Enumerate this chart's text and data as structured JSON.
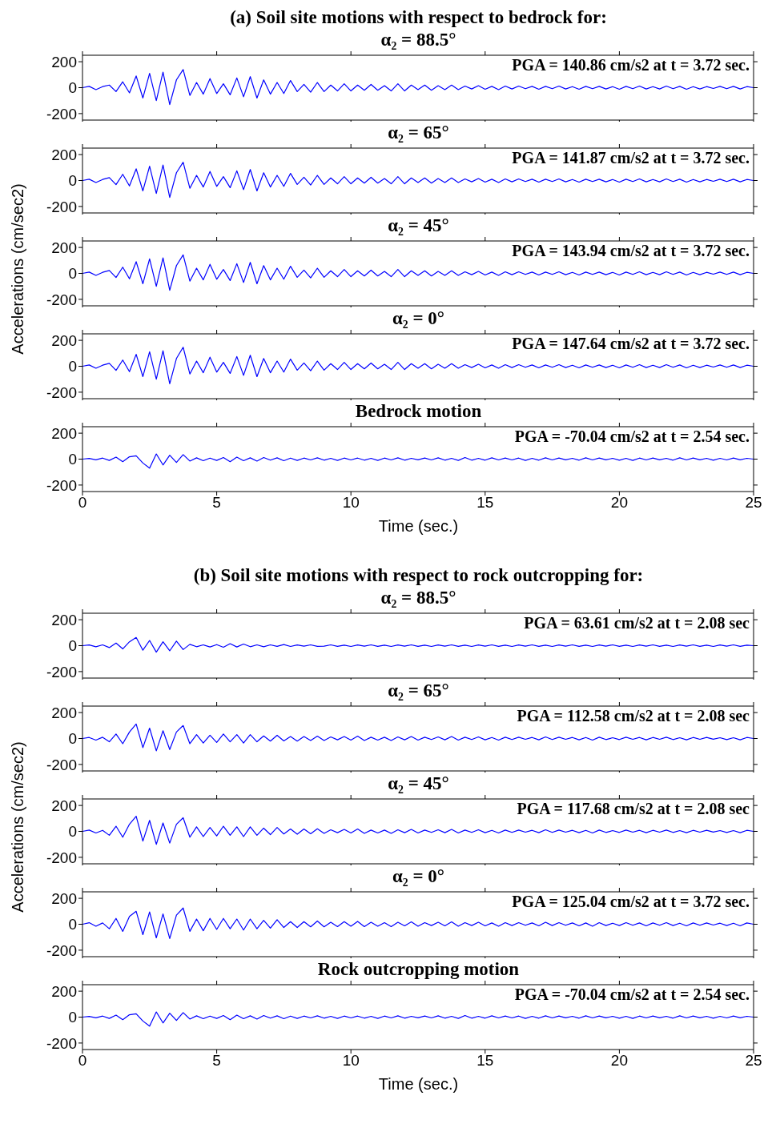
{
  "chart_data": [
    {
      "type": "line",
      "title": "(a) Soil site motions with respect to bedrock for:",
      "subtitle": "α₂ = 88.5°",
      "annotations": [
        "PGA = 140.86 cm/s2 at t = 3.72 sec."
      ],
      "tick_labels": "y",
      "xlim": [
        0,
        25
      ],
      "xticks": [
        0,
        5,
        10,
        15,
        20,
        25
      ],
      "ylim": [
        -250,
        250
      ],
      "yticks": [
        -200,
        0,
        200
      ],
      "x": [
        0,
        0.25,
        0.5,
        0.75,
        1,
        1.25,
        1.5,
        1.75,
        2,
        2.25,
        2.5,
        2.75,
        3,
        3.25,
        3.5,
        3.75,
        4,
        4.25,
        4.5,
        4.75,
        5,
        5.25,
        5.5,
        5.75,
        6,
        6.25,
        6.5,
        6.75,
        7,
        7.25,
        7.5,
        7.75,
        8,
        8.25,
        8.5,
        8.75,
        9,
        9.25,
        9.5,
        9.75,
        10,
        10.25,
        10.5,
        10.75,
        11,
        11.25,
        11.5,
        11.75,
        12,
        12.25,
        12.5,
        12.75,
        13,
        13.25,
        13.5,
        13.75,
        14,
        14.25,
        14.5,
        14.75,
        15,
        15.25,
        15.5,
        15.75,
        16,
        16.25,
        16.5,
        16.75,
        17,
        17.25,
        17.5,
        17.75,
        18,
        18.25,
        18.5,
        18.75,
        19,
        19.25,
        19.5,
        19.75,
        20,
        20.25,
        20.5,
        20.75,
        21,
        21.25,
        21.5,
        21.75,
        22,
        22.25,
        22.5,
        22.75,
        23,
        23.25,
        23.5,
        23.75,
        24,
        24.25,
        24.5,
        24.75,
        25
      ],
      "series": [
        {
          "color": "#0000ff",
          "values": [
            0,
            10,
            -15,
            8,
            20,
            -30,
            45,
            -40,
            90,
            -80,
            110,
            -100,
            120,
            -130,
            60,
            140,
            -60,
            40,
            -50,
            70,
            -45,
            30,
            -55,
            75,
            -70,
            85,
            -80,
            60,
            -50,
            40,
            -45,
            55,
            -30,
            25,
            -35,
            40,
            -30,
            20,
            -25,
            30,
            -25,
            20,
            -20,
            25,
            -20,
            15,
            -25,
            30,
            -25,
            20,
            -15,
            20,
            -20,
            15,
            -15,
            20,
            -15,
            12,
            -10,
            15,
            -12,
            10,
            -15,
            12,
            -10,
            12,
            -8,
            10,
            -12,
            10,
            -8,
            12,
            -10,
            8,
            -12,
            10,
            -8,
            10,
            -10,
            8,
            -12,
            10,
            -8,
            12,
            -10,
            8,
            -10,
            12,
            -8,
            10,
            -12,
            8,
            -10,
            8,
            -6,
            10,
            -8,
            10,
            -10,
            8,
            0
          ]
        }
      ]
    },
    {
      "type": "line",
      "title": "α₂ = 65°",
      "annotations": [
        "PGA = 141.87 cm/s2 at t = 3.72 sec."
      ],
      "tick_labels": "y",
      "xlim": [
        0,
        25
      ],
      "xticks": [
        0,
        5,
        10,
        15,
        20,
        25
      ],
      "ylim": [
        -250,
        250
      ],
      "yticks": [
        -200,
        0,
        200
      ],
      "x": [
        0,
        0.25,
        0.5,
        0.75,
        1,
        1.25,
        1.5,
        1.75,
        2,
        2.25,
        2.5,
        2.75,
        3,
        3.25,
        3.5,
        3.75,
        4,
        4.25,
        4.5,
        4.75,
        5,
        5.25,
        5.5,
        5.75,
        6,
        6.25,
        6.5,
        6.75,
        7,
        7.25,
        7.5,
        7.75,
        8,
        8.25,
        8.5,
        8.75,
        9,
        9.25,
        9.5,
        9.75,
        10,
        10.25,
        10.5,
        10.75,
        11,
        11.25,
        11.5,
        11.75,
        12,
        12.25,
        12.5,
        12.75,
        13,
        13.25,
        13.5,
        13.75,
        14,
        14.25,
        14.5,
        14.75,
        15,
        15.25,
        15.5,
        15.75,
        16,
        16.25,
        16.5,
        16.75,
        17,
        17.25,
        17.5,
        17.75,
        18,
        18.25,
        18.5,
        18.75,
        19,
        19.25,
        19.5,
        19.75,
        20,
        20.25,
        20.5,
        20.75,
        21,
        21.25,
        21.5,
        21.75,
        22,
        22.25,
        22.5,
        22.75,
        23,
        23.25,
        23.5,
        23.75,
        24,
        24.25,
        24.5,
        24.75,
        25
      ],
      "series": [
        {
          "color": "#0000ff",
          "values": [
            0,
            10,
            -15,
            8,
            22,
            -32,
            48,
            -42,
            90,
            -80,
            110,
            -100,
            120,
            -130,
            60,
            141,
            -60,
            40,
            -50,
            70,
            -45,
            30,
            -55,
            75,
            -70,
            85,
            -80,
            60,
            -50,
            40,
            -45,
            55,
            -30,
            25,
            -35,
            40,
            -30,
            20,
            -25,
            30,
            -25,
            20,
            -20,
            25,
            -20,
            15,
            -25,
            30,
            -25,
            20,
            -15,
            20,
            -20,
            15,
            -15,
            20,
            -15,
            12,
            -10,
            15,
            -12,
            10,
            -15,
            12,
            -10,
            12,
            -8,
            10,
            -12,
            10,
            -8,
            12,
            -10,
            8,
            -12,
            10,
            -8,
            10,
            -10,
            8,
            -12,
            10,
            -8,
            12,
            -10,
            8,
            -10,
            12,
            -8,
            10,
            -12,
            8,
            -10,
            8,
            -6,
            10,
            -8,
            10,
            -10,
            8,
            0
          ]
        }
      ]
    },
    {
      "type": "line",
      "title": "α₂ = 45°",
      "ylabel": "Accelerations (cm/sec2)",
      "annotations": [
        "PGA = 143.94 cm/s2 at t = 3.72 sec."
      ],
      "tick_labels": "y",
      "xlim": [
        0,
        25
      ],
      "xticks": [
        0,
        5,
        10,
        15,
        20,
        25
      ],
      "ylim": [
        -250,
        250
      ],
      "yticks": [
        -200,
        0,
        200
      ],
      "x": [
        0,
        0.25,
        0.5,
        0.75,
        1,
        1.25,
        1.5,
        1.75,
        2,
        2.25,
        2.5,
        2.75,
        3,
        3.25,
        3.5,
        3.75,
        4,
        4.25,
        4.5,
        4.75,
        5,
        5.25,
        5.5,
        5.75,
        6,
        6.25,
        6.5,
        6.75,
        7,
        7.25,
        7.5,
        7.75,
        8,
        8.25,
        8.5,
        8.75,
        9,
        9.25,
        9.5,
        9.75,
        10,
        10.25,
        10.5,
        10.75,
        11,
        11.25,
        11.5,
        11.75,
        12,
        12.25,
        12.5,
        12.75,
        13,
        13.25,
        13.5,
        13.75,
        14,
        14.25,
        14.5,
        14.75,
        15,
        15.25,
        15.5,
        15.75,
        16,
        16.25,
        16.5,
        16.75,
        17,
        17.25,
        17.5,
        17.75,
        18,
        18.25,
        18.5,
        18.75,
        19,
        19.25,
        19.5,
        19.75,
        20,
        20.25,
        20.5,
        20.75,
        21,
        21.25,
        21.5,
        21.75,
        22,
        22.25,
        22.5,
        22.75,
        23,
        23.25,
        23.5,
        23.75,
        24,
        24.25,
        24.5,
        24.75,
        25
      ],
      "series": [
        {
          "color": "#0000ff",
          "values": [
            0,
            10,
            -15,
            8,
            22,
            -32,
            48,
            -42,
            90,
            -80,
            112,
            -100,
            120,
            -130,
            60,
            143,
            -60,
            40,
            -50,
            70,
            -45,
            30,
            -55,
            75,
            -70,
            85,
            -80,
            60,
            -50,
            40,
            -45,
            55,
            -30,
            25,
            -35,
            40,
            -30,
            20,
            -25,
            30,
            -25,
            20,
            -20,
            25,
            -20,
            15,
            -25,
            30,
            -25,
            20,
            -15,
            20,
            -20,
            15,
            -15,
            20,
            -15,
            12,
            -10,
            15,
            -12,
            10,
            -15,
            12,
            -10,
            12,
            -8,
            10,
            -12,
            10,
            -8,
            12,
            -10,
            8,
            -12,
            10,
            -8,
            10,
            -10,
            8,
            -12,
            10,
            -8,
            12,
            -10,
            8,
            -10,
            12,
            -8,
            10,
            -12,
            8,
            -10,
            8,
            -6,
            10,
            -8,
            10,
            -10,
            8,
            0
          ]
        }
      ]
    },
    {
      "type": "line",
      "title": "α₂ = 0°",
      "annotations": [
        "PGA = 147.64 cm/s2 at t = 3.72 sec."
      ],
      "tick_labels": "y",
      "xlim": [
        0,
        25
      ],
      "xticks": [
        0,
        5,
        10,
        15,
        20,
        25
      ],
      "ylim": [
        -250,
        250
      ],
      "yticks": [
        -200,
        0,
        200
      ],
      "x": [
        0,
        0.25,
        0.5,
        0.75,
        1,
        1.25,
        1.5,
        1.75,
        2,
        2.25,
        2.5,
        2.75,
        3,
        3.25,
        3.5,
        3.75,
        4,
        4.25,
        4.5,
        4.75,
        5,
        5.25,
        5.5,
        5.75,
        6,
        6.25,
        6.5,
        6.75,
        7,
        7.25,
        7.5,
        7.75,
        8,
        8.25,
        8.5,
        8.75,
        9,
        9.25,
        9.5,
        9.75,
        10,
        10.25,
        10.5,
        10.75,
        11,
        11.25,
        11.5,
        11.75,
        12,
        12.25,
        12.5,
        12.75,
        13,
        13.25,
        13.5,
        13.75,
        14,
        14.25,
        14.5,
        14.75,
        15,
        15.25,
        15.5,
        15.75,
        16,
        16.25,
        16.5,
        16.75,
        17,
        17.25,
        17.5,
        17.75,
        18,
        18.25,
        18.5,
        18.75,
        19,
        19.25,
        19.5,
        19.75,
        20,
        20.25,
        20.5,
        20.75,
        21,
        21.25,
        21.5,
        21.75,
        22,
        22.25,
        22.5,
        22.75,
        23,
        23.25,
        23.5,
        23.75,
        24,
        24.25,
        24.5,
        24.75,
        25
      ],
      "series": [
        {
          "color": "#0000ff",
          "values": [
            0,
            10,
            -15,
            8,
            22,
            -32,
            48,
            -42,
            92,
            -80,
            112,
            -100,
            120,
            -135,
            60,
            147,
            -60,
            40,
            -50,
            70,
            -45,
            30,
            -55,
            75,
            -70,
            85,
            -80,
            60,
            -50,
            40,
            -45,
            55,
            -30,
            25,
            -35,
            40,
            -30,
            20,
            -25,
            30,
            -25,
            20,
            -20,
            25,
            -20,
            15,
            -25,
            30,
            -25,
            20,
            -15,
            20,
            -20,
            15,
            -15,
            20,
            -15,
            12,
            -10,
            15,
            -12,
            10,
            -15,
            12,
            -10,
            12,
            -8,
            10,
            -12,
            10,
            -8,
            12,
            -10,
            8,
            -12,
            10,
            -8,
            10,
            -10,
            8,
            -12,
            10,
            -8,
            12,
            -10,
            8,
            -10,
            12,
            -8,
            10,
            -12,
            8,
            -10,
            8,
            -6,
            10,
            -8,
            10,
            -10,
            8,
            0
          ]
        }
      ]
    },
    {
      "type": "line",
      "title": "Bedrock motion",
      "xlabel": "Time (sec.)",
      "annotations": [
        "PGA = -70.04 cm/s2 at t = 2.54 sec."
      ],
      "xlim": [
        0,
        25
      ],
      "xticks": [
        0,
        5,
        10,
        15,
        20,
        25
      ],
      "ylim": [
        -250,
        250
      ],
      "yticks": [
        -200,
        0,
        200
      ],
      "x": [
        0,
        0.25,
        0.5,
        0.75,
        1,
        1.25,
        1.5,
        1.75,
        2,
        2.25,
        2.5,
        2.75,
        3,
        3.25,
        3.5,
        3.75,
        4,
        4.25,
        4.5,
        4.75,
        5,
        5.25,
        5.5,
        5.75,
        6,
        6.25,
        6.5,
        6.75,
        7,
        7.25,
        7.5,
        7.75,
        8,
        8.25,
        8.5,
        8.75,
        9,
        9.25,
        9.5,
        9.75,
        10,
        10.25,
        10.5,
        10.75,
        11,
        11.25,
        11.5,
        11.75,
        12,
        12.25,
        12.5,
        12.75,
        13,
        13.25,
        13.5,
        13.75,
        14,
        14.25,
        14.5,
        14.75,
        15,
        15.25,
        15.5,
        15.75,
        16,
        16.25,
        16.5,
        16.75,
        17,
        17.25,
        17.5,
        17.75,
        18,
        18.25,
        18.5,
        18.75,
        19,
        19.25,
        19.5,
        19.75,
        20,
        20.25,
        20.5,
        20.75,
        21,
        21.25,
        21.5,
        21.75,
        22,
        22.25,
        22.5,
        22.75,
        23,
        23.25,
        23.5,
        23.75,
        24,
        24.25,
        24.5,
        24.75,
        25
      ],
      "series": [
        {
          "color": "#0000ff",
          "values": [
            0,
            5,
            -5,
            8,
            -10,
            15,
            -20,
            18,
            25,
            -30,
            -70,
            40,
            -45,
            30,
            -25,
            35,
            -15,
            10,
            -12,
            8,
            -10,
            12,
            -20,
            15,
            -12,
            10,
            -15,
            12,
            -8,
            10,
            -12,
            8,
            -10,
            8,
            -6,
            10,
            -8,
            6,
            -10,
            8,
            -6,
            8,
            -8,
            6,
            -10,
            8,
            -6,
            10,
            -8,
            6,
            -5,
            8,
            -6,
            10,
            -8,
            6,
            -10,
            12,
            -8,
            6,
            -8,
            10,
            -6,
            8,
            -6,
            8,
            -10,
            6,
            -8,
            10,
            -6,
            8,
            -5,
            6,
            -8,
            10,
            -6,
            8,
            -5,
            6,
            -8,
            6,
            -10,
            8,
            -6,
            8,
            -5,
            6,
            -8,
            10,
            -6,
            8,
            -5,
            6,
            -8,
            6,
            -6,
            8,
            -5,
            6,
            0
          ]
        }
      ]
    },
    {
      "type": "line",
      "title": "(b) Soil site motions with respect to rock outcropping for:",
      "subtitle": "α₂ = 88.5°",
      "annotations": [
        "PGA = 63.61 cm/s2 at t = 2.08 sec"
      ],
      "tick_labels": "y",
      "xlim": [
        0,
        25
      ],
      "xticks": [
        0,
        5,
        10,
        15,
        20,
        25
      ],
      "ylim": [
        -250,
        250
      ],
      "yticks": [
        -200,
        0,
        200
      ],
      "x": [
        0,
        0.25,
        0.5,
        0.75,
        1,
        1.25,
        1.5,
        1.75,
        2,
        2.25,
        2.5,
        2.75,
        3,
        3.25,
        3.5,
        3.75,
        4,
        4.25,
        4.5,
        4.75,
        5,
        5.25,
        5.5,
        5.75,
        6,
        6.25,
        6.5,
        6.75,
        7,
        7.25,
        7.5,
        7.75,
        8,
        8.25,
        8.5,
        8.75,
        9,
        9.25,
        9.5,
        9.75,
        10,
        10.25,
        10.5,
        10.75,
        11,
        11.25,
        11.5,
        11.75,
        12,
        12.25,
        12.5,
        12.75,
        13,
        13.25,
        13.5,
        13.75,
        14,
        14.25,
        14.5,
        14.75,
        15,
        15.25,
        15.5,
        15.75,
        16,
        16.25,
        16.5,
        16.75,
        17,
        17.25,
        17.5,
        17.75,
        18,
        18.25,
        18.5,
        18.75,
        19,
        19.25,
        19.5,
        19.75,
        20,
        20.25,
        20.5,
        20.75,
        21,
        21.25,
        21.5,
        21.75,
        22,
        22.25,
        22.5,
        22.75,
        23,
        23.25,
        23.5,
        23.75,
        24,
        24.25,
        24.5,
        24.75,
        25
      ],
      "series": [
        {
          "color": "#0000ff",
          "values": [
            0,
            5,
            -8,
            6,
            -15,
            20,
            -25,
            30,
            63,
            -35,
            40,
            -50,
            30,
            -40,
            35,
            -30,
            10,
            -8,
            6,
            -10,
            8,
            -12,
            15,
            -10,
            12,
            -8,
            6,
            -8,
            6,
            -5,
            8,
            -6,
            5,
            -4,
            6,
            -5,
            -4,
            6,
            -5,
            4,
            -6,
            5,
            -4,
            6,
            -5,
            4,
            -6,
            5,
            -4,
            6,
            -5,
            4,
            -6,
            5,
            -4,
            6,
            -5,
            4,
            -6,
            5,
            -4,
            6,
            -5,
            4,
            -6,
            5,
            -4,
            6,
            -5,
            4,
            -6,
            5,
            -4,
            6,
            -5,
            4,
            -6,
            5,
            -4,
            6,
            -5,
            4,
            -6,
            5,
            -4,
            6,
            -5,
            4,
            -6,
            5,
            -4,
            6,
            -5,
            4,
            -6,
            5,
            -4,
            6,
            -5,
            4,
            0
          ]
        }
      ]
    },
    {
      "type": "line",
      "title": "α₂ = 65°",
      "annotations": [
        "PGA = 112.58 cm/s2 at t = 2.08 sec"
      ],
      "tick_labels": "y",
      "xlim": [
        0,
        25
      ],
      "xticks": [
        0,
        5,
        10,
        15,
        20,
        25
      ],
      "ylim": [
        -250,
        250
      ],
      "yticks": [
        -200,
        0,
        200
      ],
      "x": [
        0,
        0.25,
        0.5,
        0.75,
        1,
        1.25,
        1.5,
        1.75,
        2,
        2.25,
        2.5,
        2.75,
        3,
        3.25,
        3.5,
        3.75,
        4,
        4.25,
        4.5,
        4.75,
        5,
        5.25,
        5.5,
        5.75,
        6,
        6.25,
        6.5,
        6.75,
        7,
        7.25,
        7.5,
        7.75,
        8,
        8.25,
        8.5,
        8.75,
        9,
        9.25,
        9.5,
        9.75,
        10,
        10.25,
        10.5,
        10.75,
        11,
        11.25,
        11.5,
        11.75,
        12,
        12.25,
        12.5,
        12.75,
        13,
        13.25,
        13.5,
        13.75,
        14,
        14.25,
        14.5,
        14.75,
        15,
        15.25,
        15.5,
        15.75,
        16,
        16.25,
        16.5,
        16.75,
        17,
        17.25,
        17.5,
        17.75,
        18,
        18.25,
        18.5,
        18.75,
        19,
        19.25,
        19.5,
        19.75,
        20,
        20.25,
        20.5,
        20.75,
        21,
        21.25,
        21.5,
        21.75,
        22,
        22.25,
        22.5,
        22.75,
        23,
        23.25,
        23.5,
        23.75,
        24,
        24.25,
        24.5,
        24.75,
        25
      ],
      "series": [
        {
          "color": "#0000ff",
          "values": [
            0,
            8,
            -12,
            10,
            -25,
            35,
            -40,
            50,
            112,
            -70,
            80,
            -95,
            60,
            -85,
            50,
            100,
            -40,
            30,
            -35,
            25,
            -30,
            35,
            -25,
            30,
            -35,
            30,
            -25,
            20,
            -20,
            25,
            -18,
            15,
            -20,
            15,
            -15,
            18,
            -15,
            12,
            -10,
            15,
            -12,
            18,
            -15,
            10,
            -12,
            10,
            -15,
            12,
            -10,
            15,
            -12,
            10,
            -8,
            12,
            -10,
            15,
            -12,
            10,
            -8,
            12,
            -10,
            8,
            -12,
            10,
            -8,
            10,
            -6,
            8,
            -10,
            12,
            -8,
            10,
            -6,
            8,
            -10,
            8,
            -12,
            10,
            -8,
            6,
            -8,
            10,
            -6,
            8,
            -10,
            8,
            -6,
            10,
            -8,
            6,
            -10,
            8,
            -6,
            8,
            -5,
            6,
            -8,
            6,
            -10,
            8,
            0
          ]
        }
      ]
    },
    {
      "type": "line",
      "title": "α₂ = 45°",
      "ylabel": "Accelerations (cm/sec2)",
      "annotations": [
        "PGA = 117.68 cm/s2 at t = 2.08 sec"
      ],
      "tick_labels": "y",
      "xlim": [
        0,
        25
      ],
      "xticks": [
        0,
        5,
        10,
        15,
        20,
        25
      ],
      "ylim": [
        -250,
        250
      ],
      "yticks": [
        -200,
        0,
        200
      ],
      "x": [
        0,
        0.25,
        0.5,
        0.75,
        1,
        1.25,
        1.5,
        1.75,
        2,
        2.25,
        2.5,
        2.75,
        3,
        3.25,
        3.5,
        3.75,
        4,
        4.25,
        4.5,
        4.75,
        5,
        5.25,
        5.5,
        5.75,
        6,
        6.25,
        6.5,
        6.75,
        7,
        7.25,
        7.5,
        7.75,
        8,
        8.25,
        8.5,
        8.75,
        9,
        9.25,
        9.5,
        9.75,
        10,
        10.25,
        10.5,
        10.75,
        11,
        11.25,
        11.5,
        11.75,
        12,
        12.25,
        12.5,
        12.75,
        13,
        13.25,
        13.5,
        13.75,
        14,
        14.25,
        14.5,
        14.75,
        15,
        15.25,
        15.5,
        15.75,
        16,
        16.25,
        16.5,
        16.75,
        17,
        17.25,
        17.5,
        17.75,
        18,
        18.25,
        18.5,
        18.75,
        19,
        19.25,
        19.5,
        19.75,
        20,
        20.25,
        20.5,
        20.75,
        21,
        21.25,
        21.5,
        21.75,
        22,
        22.25,
        22.5,
        22.75,
        23,
        23.25,
        23.5,
        23.75,
        24,
        24.25,
        24.5,
        24.75,
        25
      ],
      "series": [
        {
          "color": "#0000ff",
          "values": [
            0,
            10,
            -12,
            8,
            -30,
            40,
            -45,
            55,
            117,
            -75,
            85,
            -100,
            65,
            -90,
            55,
            105,
            -45,
            35,
            -40,
            30,
            -35,
            40,
            -30,
            35,
            -40,
            35,
            -30,
            25,
            -25,
            30,
            -20,
            18,
            -22,
            18,
            -18,
            20,
            -15,
            12,
            -10,
            15,
            -12,
            18,
            -15,
            10,
            -12,
            10,
            -15,
            12,
            -10,
            15,
            -12,
            10,
            -8,
            12,
            -10,
            15,
            -12,
            10,
            -8,
            12,
            -10,
            8,
            -12,
            10,
            -8,
            10,
            -6,
            8,
            -10,
            12,
            -8,
            10,
            -6,
            8,
            -10,
            8,
            -12,
            10,
            -8,
            6,
            -8,
            10,
            -6,
            8,
            -10,
            8,
            -6,
            10,
            -8,
            6,
            -10,
            8,
            -6,
            8,
            -5,
            6,
            -8,
            6,
            -10,
            8,
            0
          ]
        }
      ]
    },
    {
      "type": "line",
      "title": "α₂ = 0°",
      "annotations": [
        "PGA = 125.04 cm/s2 at t = 3.72 sec."
      ],
      "tick_labels": "y",
      "xlim": [
        0,
        25
      ],
      "xticks": [
        0,
        5,
        10,
        15,
        20,
        25
      ],
      "ylim": [
        -250,
        250
      ],
      "yticks": [
        -200,
        0,
        200
      ],
      "x": [
        0,
        0.25,
        0.5,
        0.75,
        1,
        1.25,
        1.5,
        1.75,
        2,
        2.25,
        2.5,
        2.75,
        3,
        3.25,
        3.5,
        3.75,
        4,
        4.25,
        4.5,
        4.75,
        5,
        5.25,
        5.5,
        5.75,
        6,
        6.25,
        6.5,
        6.75,
        7,
        7.25,
        7.5,
        7.75,
        8,
        8.25,
        8.5,
        8.75,
        9,
        9.25,
        9.5,
        9.75,
        10,
        10.25,
        10.5,
        10.75,
        11,
        11.25,
        11.5,
        11.75,
        12,
        12.25,
        12.5,
        12.75,
        13,
        13.25,
        13.5,
        13.75,
        14,
        14.25,
        14.5,
        14.75,
        15,
        15.25,
        15.5,
        15.75,
        16,
        16.25,
        16.5,
        16.75,
        17,
        17.25,
        17.5,
        17.75,
        18,
        18.25,
        18.5,
        18.75,
        19,
        19.25,
        19.5,
        19.75,
        20,
        20.25,
        20.5,
        20.75,
        21,
        21.25,
        21.5,
        21.75,
        22,
        22.25,
        22.5,
        22.75,
        23,
        23.25,
        23.5,
        23.75,
        24,
        24.25,
        24.5,
        24.75,
        25
      ],
      "series": [
        {
          "color": "#0000ff",
          "values": [
            0,
            12,
            -15,
            10,
            -35,
            45,
            -55,
            60,
            100,
            -80,
            95,
            -105,
            80,
            -110,
            70,
            125,
            -55,
            40,
            -50,
            45,
            -40,
            45,
            -35,
            40,
            -45,
            40,
            -35,
            30,
            -30,
            35,
            -25,
            20,
            -25,
            20,
            -20,
            25,
            -20,
            15,
            -18,
            20,
            -15,
            22,
            -18,
            15,
            -15,
            12,
            -18,
            15,
            -12,
            18,
            -15,
            12,
            -10,
            15,
            -12,
            18,
            -15,
            12,
            -10,
            15,
            -12,
            10,
            -15,
            12,
            -10,
            12,
            -8,
            10,
            -12,
            15,
            -10,
            12,
            -8,
            10,
            -12,
            10,
            -15,
            12,
            -10,
            8,
            -10,
            12,
            -8,
            10,
            -12,
            10,
            -8,
            12,
            -10,
            8,
            -12,
            10,
            -8,
            10,
            -6,
            8,
            -10,
            8,
            -12,
            10,
            0
          ]
        }
      ]
    },
    {
      "type": "line",
      "title": "Rock outcropping motion",
      "xlabel": "Time (sec.)",
      "annotations": [
        "PGA = -70.04 cm/s2 at t = 2.54 sec."
      ],
      "xlim": [
        0,
        25
      ],
      "xticks": [
        0,
        5,
        10,
        15,
        20,
        25
      ],
      "ylim": [
        -250,
        250
      ],
      "yticks": [
        -200,
        0,
        200
      ],
      "x": [
        0,
        0.25,
        0.5,
        0.75,
        1,
        1.25,
        1.5,
        1.75,
        2,
        2.25,
        2.5,
        2.75,
        3,
        3.25,
        3.5,
        3.75,
        4,
        4.25,
        4.5,
        4.75,
        5,
        5.25,
        5.5,
        5.75,
        6,
        6.25,
        6.5,
        6.75,
        7,
        7.25,
        7.5,
        7.75,
        8,
        8.25,
        8.5,
        8.75,
        9,
        9.25,
        9.5,
        9.75,
        10,
        10.25,
        10.5,
        10.75,
        11,
        11.25,
        11.5,
        11.75,
        12,
        12.25,
        12.5,
        12.75,
        13,
        13.25,
        13.5,
        13.75,
        14,
        14.25,
        14.5,
        14.75,
        15,
        15.25,
        15.5,
        15.75,
        16,
        16.25,
        16.5,
        16.75,
        17,
        17.25,
        17.5,
        17.75,
        18,
        18.25,
        18.5,
        18.75,
        19,
        19.25,
        19.5,
        19.75,
        20,
        20.25,
        20.5,
        20.75,
        21,
        21.25,
        21.5,
        21.75,
        22,
        22.25,
        22.5,
        22.75,
        23,
        23.25,
        23.5,
        23.75,
        24,
        24.25,
        24.5,
        24.75,
        25
      ],
      "series": [
        {
          "color": "#0000ff",
          "values": [
            0,
            5,
            -5,
            8,
            -10,
            15,
            -20,
            18,
            25,
            -30,
            -70,
            40,
            -45,
            30,
            -25,
            35,
            -15,
            10,
            -12,
            8,
            -10,
            12,
            -20,
            15,
            -12,
            10,
            -15,
            12,
            -8,
            10,
            -12,
            8,
            -10,
            8,
            -6,
            10,
            -8,
            6,
            -10,
            8,
            -6,
            8,
            -8,
            6,
            -10,
            8,
            -6,
            10,
            -8,
            6,
            -5,
            8,
            -6,
            10,
            -8,
            6,
            -10,
            12,
            -8,
            6,
            -8,
            10,
            -6,
            8,
            -6,
            8,
            -10,
            6,
            -8,
            10,
            -6,
            8,
            -5,
            6,
            -8,
            10,
            -6,
            8,
            -5,
            6,
            -8,
            6,
            -10,
            8,
            -6,
            8,
            -5,
            6,
            -8,
            10,
            -6,
            8,
            -5,
            6,
            -8,
            6,
            -6,
            8,
            -5,
            6,
            0
          ]
        }
      ]
    }
  ]
}
